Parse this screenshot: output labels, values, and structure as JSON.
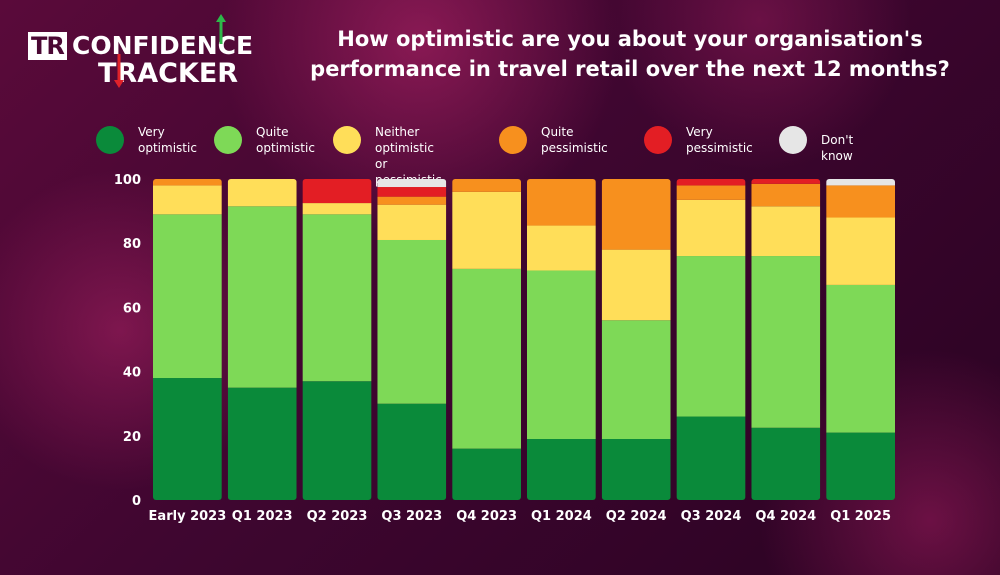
{
  "logo": {
    "prefix": "TR",
    "line1": "CONFIDENCE",
    "line2": "TRACKER",
    "up_arrow_color": "#2eb84a",
    "down_arrow_color": "#e0222a"
  },
  "chart_data": {
    "type": "bar",
    "stacked": true,
    "title": "How optimistic are you about your organisation's performance in travel retail over the next 12 months?",
    "title_lines": [
      "How optimistic are you about your organisation's",
      "performance in travel retail over the next 12 months?"
    ],
    "categories": [
      "Early 2023",
      "Q1 2023",
      "Q2 2023",
      "Q3 2023",
      "Q4 2023",
      "Q1 2024",
      "Q2 2024",
      "Q3 2024",
      "Q4 2024",
      "Q1 2025"
    ],
    "ylim": [
      0,
      100
    ],
    "yticks": [
      0,
      20,
      40,
      60,
      80,
      100
    ],
    "xlabel": "",
    "ylabel": "",
    "legend_position": "top",
    "series": [
      {
        "name": "Very optimistic",
        "label_lines": [
          "Very",
          "optimistic"
        ],
        "color": "#0a8a3a",
        "values": [
          38,
          35,
          37,
          30,
          16,
          19,
          19,
          26,
          22.5,
          21
        ]
      },
      {
        "name": "Quite optimistic",
        "label_lines": [
          "Quite",
          "optimistic"
        ],
        "color": "#7ed957",
        "values": [
          51,
          56.5,
          52,
          51,
          56,
          52.5,
          37,
          50,
          53.5,
          46
        ]
      },
      {
        "name": "Neither optimistic or pessimistic",
        "label_lines": [
          "Neither optimistic",
          "or pessimistic"
        ],
        "color": "#ffde59",
        "values": [
          9,
          8.5,
          3.5,
          11,
          24,
          14,
          22,
          17.5,
          15.5,
          21
        ]
      },
      {
        "name": "Quite pessimistic",
        "label_lines": [
          "Quite",
          "pessimistic"
        ],
        "color": "#f7901e",
        "values": [
          2,
          0,
          0,
          2.5,
          4,
          14.5,
          22,
          4.5,
          7,
          10
        ]
      },
      {
        "name": "Very pessimistic",
        "label_lines": [
          "Very",
          "pessimistic"
        ],
        "color": "#e31e24",
        "values": [
          0,
          0,
          7.5,
          3,
          0,
          0,
          0,
          2,
          1.5,
          0
        ]
      },
      {
        "name": "Don't know",
        "label_lines": [
          "Don't know"
        ],
        "color": "#e6e6e6",
        "values": [
          0,
          0,
          0,
          2.5,
          0,
          0,
          0,
          0,
          0,
          2
        ]
      }
    ]
  }
}
